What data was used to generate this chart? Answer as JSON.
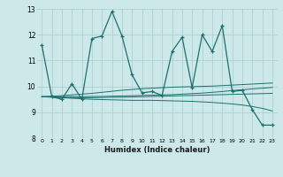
{
  "xlabel": "Humidex (Indice chaleur)",
  "xlim": [
    -0.5,
    23.5
  ],
  "ylim": [
    8,
    13
  ],
  "y_ticks": [
    8,
    9,
    10,
    11,
    12,
    13
  ],
  "x_ticks": [
    0,
    1,
    2,
    3,
    4,
    5,
    6,
    7,
    8,
    9,
    10,
    11,
    12,
    13,
    14,
    15,
    16,
    17,
    18,
    19,
    20,
    21,
    22,
    23
  ],
  "bg_color": "#cce8e8",
  "grid_color": "#aacccc",
  "line_color": "#1a7070",
  "series_main": [
    11.6,
    9.6,
    9.5,
    10.1,
    9.5,
    11.85,
    11.95,
    12.9,
    11.95,
    10.45,
    9.75,
    9.8,
    9.65,
    11.35,
    11.9,
    9.95,
    12.0,
    11.35,
    12.35,
    9.8,
    9.85,
    9.1,
    8.5,
    8.5
  ],
  "trend_lines": [
    [
      9.6,
      9.62,
      9.64,
      9.67,
      9.7,
      9.73,
      9.77,
      9.81,
      9.85,
      9.88,
      9.91,
      9.93,
      9.95,
      9.97,
      9.98,
      9.99,
      10.0,
      10.01,
      10.03,
      10.05,
      10.07,
      10.09,
      10.11,
      10.13
    ],
    [
      9.6,
      9.59,
      9.58,
      9.57,
      9.56,
      9.56,
      9.57,
      9.58,
      9.58,
      9.59,
      9.6,
      9.61,
      9.62,
      9.63,
      9.64,
      9.65,
      9.66,
      9.67,
      9.68,
      9.69,
      9.7,
      9.71,
      9.72,
      9.73
    ],
    [
      9.6,
      9.58,
      9.56,
      9.54,
      9.52,
      9.5,
      9.49,
      9.48,
      9.47,
      9.46,
      9.46,
      9.46,
      9.45,
      9.44,
      9.43,
      9.42,
      9.4,
      9.38,
      9.35,
      9.32,
      9.28,
      9.22,
      9.15,
      9.05
    ],
    [
      9.6,
      9.6,
      9.6,
      9.6,
      9.6,
      9.61,
      9.61,
      9.62,
      9.63,
      9.64,
      9.65,
      9.66,
      9.67,
      9.68,
      9.7,
      9.72,
      9.74,
      9.77,
      9.8,
      9.84,
      9.87,
      9.9,
      9.93,
      9.96
    ]
  ]
}
